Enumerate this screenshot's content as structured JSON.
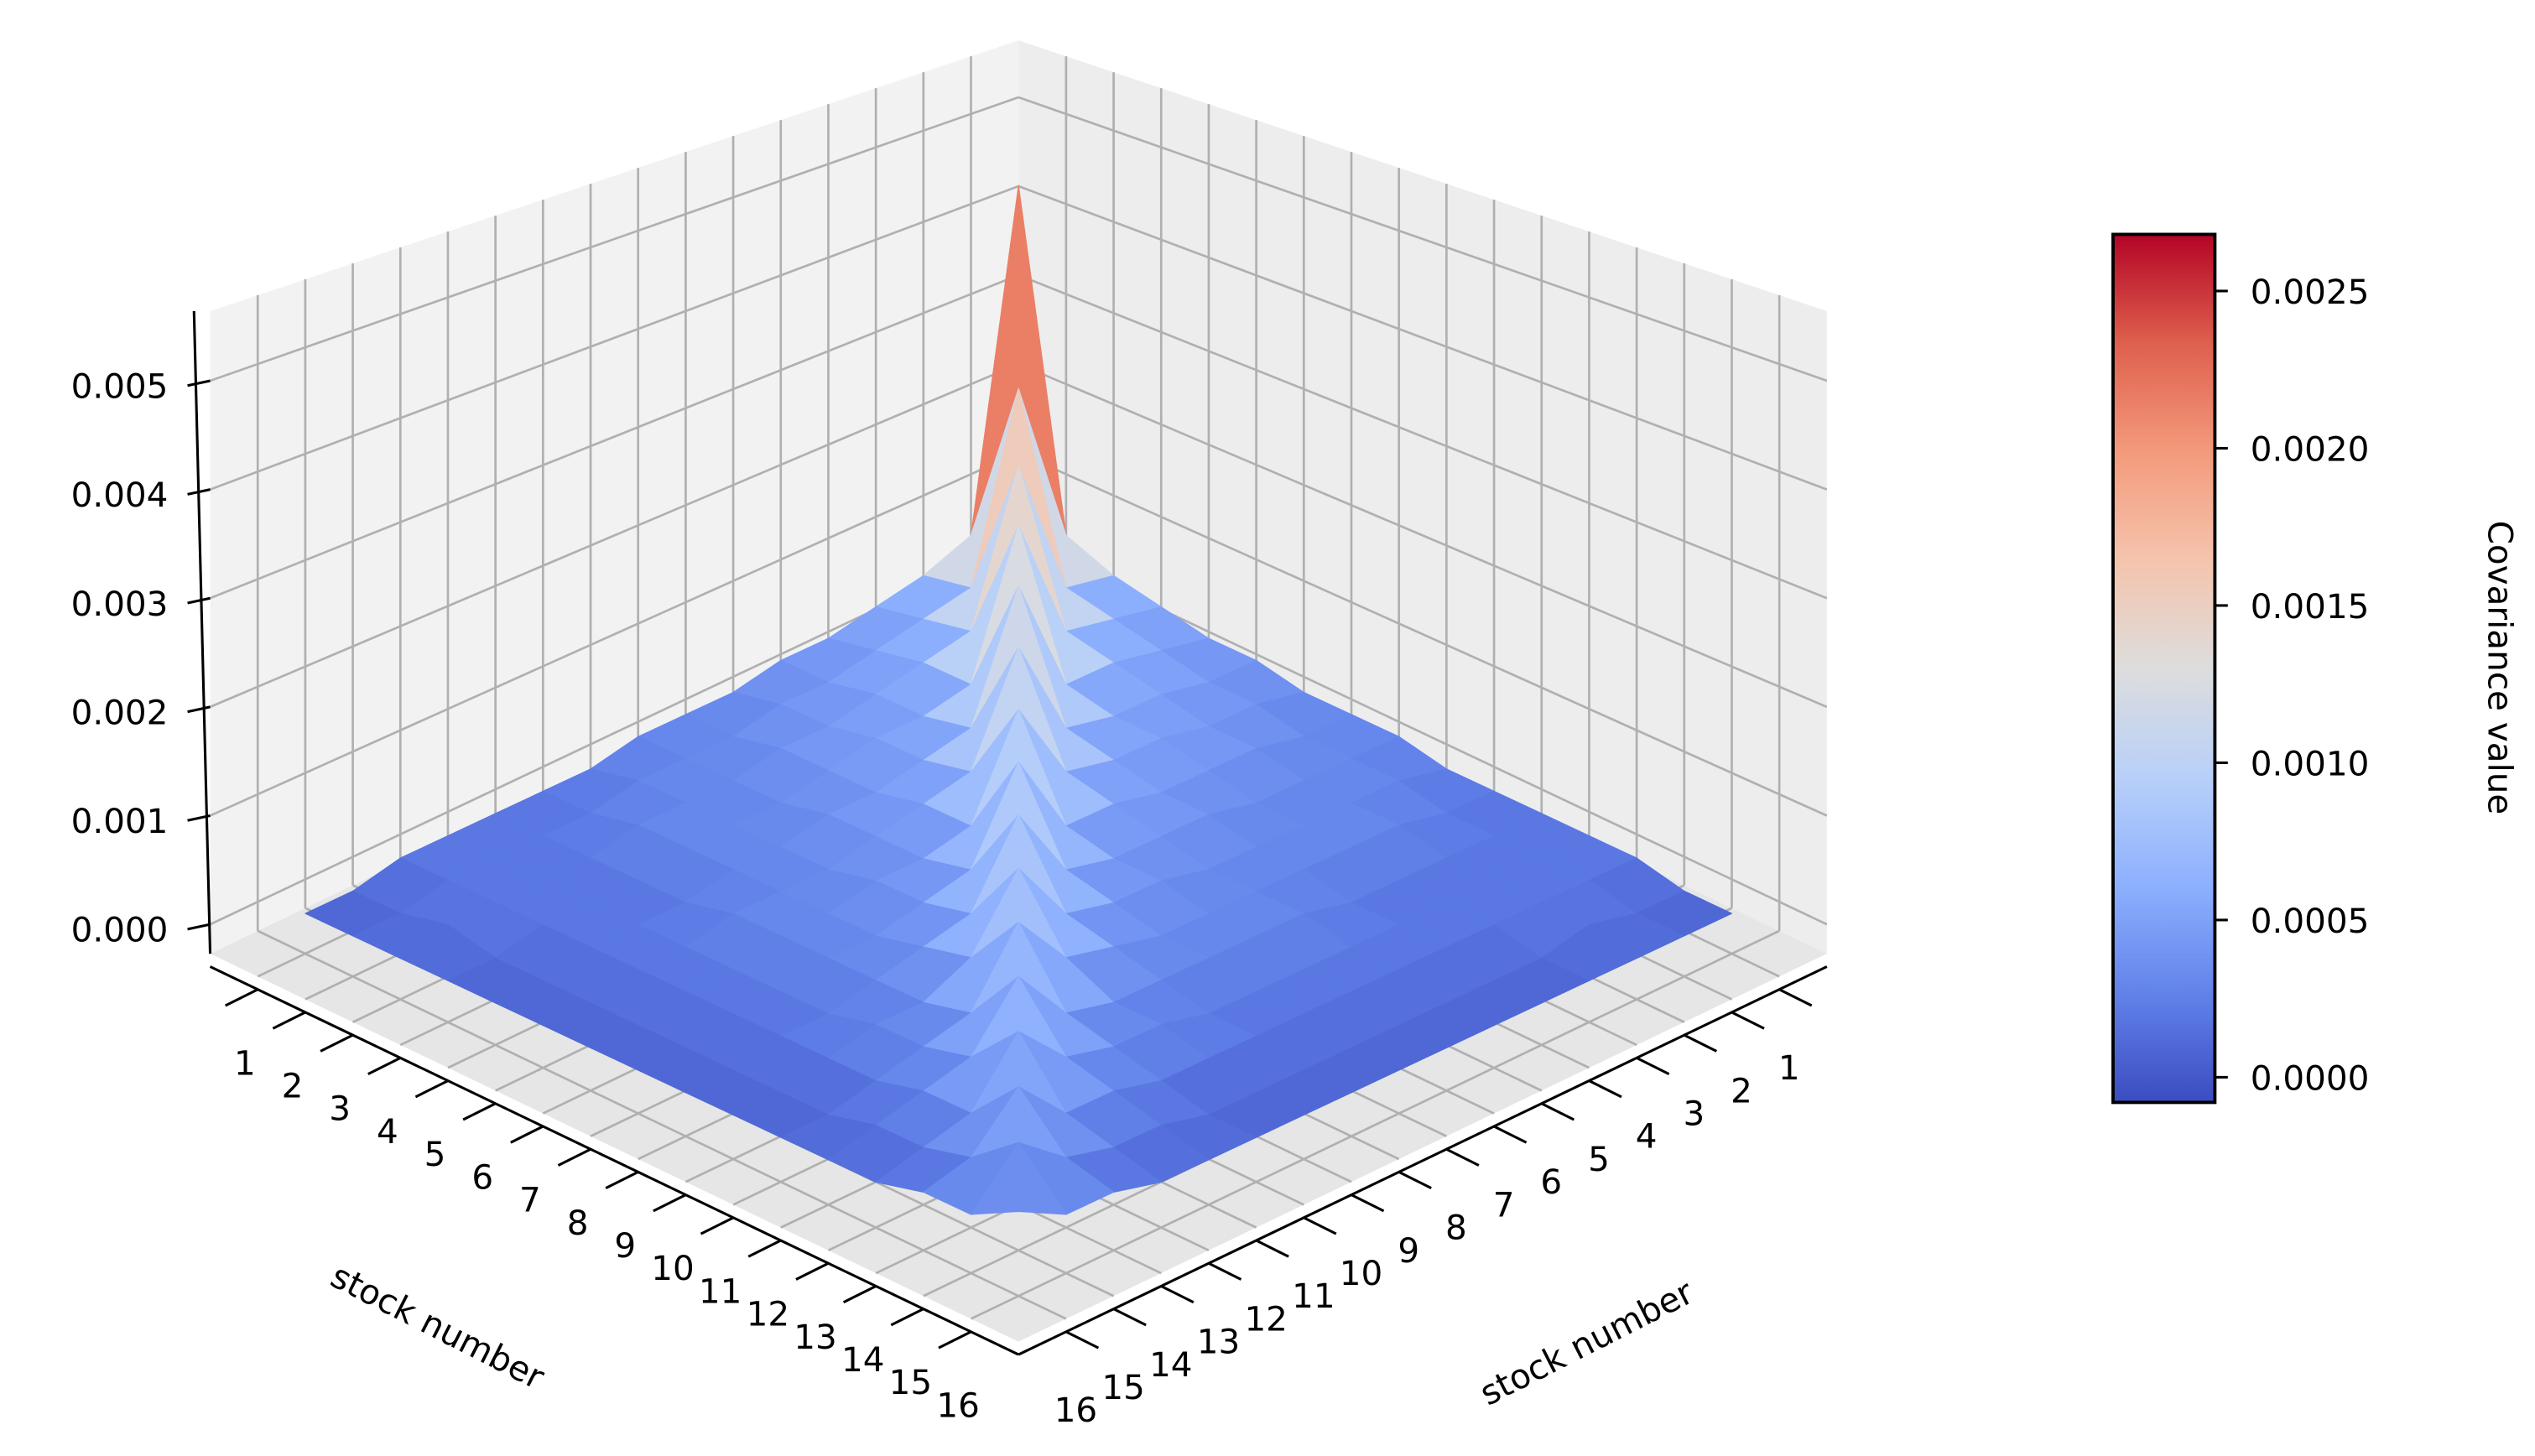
{
  "chart_data": {
    "type": "surface",
    "x": [
      1,
      2,
      3,
      4,
      5,
      6,
      7,
      8,
      9,
      10,
      11,
      12,
      13,
      14,
      15,
      16
    ],
    "y": [
      1,
      2,
      3,
      4,
      5,
      6,
      7,
      8,
      9,
      10,
      11,
      12,
      13,
      14,
      15,
      16
    ],
    "z": [
      [
        0.0044,
        0.0008,
        0.0006,
        0.0005,
        0.0004,
        0.0004,
        0.0003,
        0.0003,
        0.0003,
        0.0002,
        0.0002,
        0.0002,
        0.0002,
        0.0002,
        0.0001,
        0.0001
      ],
      [
        0.0008,
        0.0026,
        0.0007,
        0.0006,
        0.0005,
        0.0004,
        0.0004,
        0.0003,
        0.0003,
        0.0003,
        0.0002,
        0.0002,
        0.0002,
        0.0002,
        0.0001,
        0.0001
      ],
      [
        0.0006,
        0.0007,
        0.0022,
        0.0007,
        0.0006,
        0.0005,
        0.0004,
        0.0004,
        0.0003,
        0.0003,
        0.0003,
        0.0002,
        0.0002,
        0.0002,
        0.0002,
        0.0001
      ],
      [
        0.0005,
        0.0006,
        0.0007,
        0.002,
        0.0006,
        0.0005,
        0.0005,
        0.0004,
        0.0003,
        0.0003,
        0.0003,
        0.0002,
        0.0002,
        0.0002,
        0.0001,
        0.0001
      ],
      [
        0.0004,
        0.0005,
        0.0006,
        0.0006,
        0.0018,
        0.0006,
        0.0005,
        0.0004,
        0.0004,
        0.0003,
        0.0003,
        0.0002,
        0.0002,
        0.0002,
        0.0001,
        0.0001
      ],
      [
        0.0004,
        0.0004,
        0.0005,
        0.0005,
        0.0006,
        0.0016,
        0.0006,
        0.0005,
        0.0004,
        0.0003,
        0.0003,
        0.0003,
        0.0002,
        0.0002,
        0.0001,
        0.0001
      ],
      [
        0.0003,
        0.0004,
        0.0004,
        0.0005,
        0.0005,
        0.0006,
        0.0014,
        0.0005,
        0.0004,
        0.0004,
        0.0003,
        0.0003,
        0.0002,
        0.0002,
        0.0001,
        0.0001
      ],
      [
        0.0003,
        0.0003,
        0.0004,
        0.0004,
        0.0004,
        0.0005,
        0.0005,
        0.0013,
        0.0005,
        0.0004,
        0.0003,
        0.0003,
        0.0002,
        0.0002,
        0.0001,
        0.0001
      ],
      [
        0.0003,
        0.0003,
        0.0003,
        0.0003,
        0.0004,
        0.0004,
        0.0004,
        0.0005,
        0.0012,
        0.0005,
        0.0004,
        0.0003,
        0.0002,
        0.0002,
        0.0001,
        0.0001
      ],
      [
        0.0002,
        0.0003,
        0.0003,
        0.0003,
        0.0003,
        0.0003,
        0.0004,
        0.0004,
        0.0005,
        0.0011,
        0.0005,
        0.0003,
        0.0003,
        0.0002,
        0.0001,
        0.0001
      ],
      [
        0.0002,
        0.0002,
        0.0003,
        0.0003,
        0.0003,
        0.0003,
        0.0003,
        0.0003,
        0.0004,
        0.0005,
        0.001,
        0.0004,
        0.0003,
        0.0002,
        0.0001,
        0.0001
      ],
      [
        0.0002,
        0.0002,
        0.0002,
        0.0002,
        0.0002,
        0.0003,
        0.0003,
        0.0003,
        0.0003,
        0.0003,
        0.0004,
        0.0009,
        0.0004,
        0.0003,
        0.0002,
        0.0001
      ],
      [
        0.0002,
        0.0002,
        0.0002,
        0.0002,
        0.0002,
        0.0002,
        0.0002,
        0.0002,
        0.0002,
        0.0003,
        0.0003,
        0.0004,
        0.0008,
        0.0003,
        0.0002,
        0.0001
      ],
      [
        0.0002,
        0.0002,
        0.0002,
        0.0002,
        0.0002,
        0.0002,
        0.0002,
        0.0002,
        0.0002,
        0.0002,
        0.0002,
        0.0003,
        0.0003,
        0.0007,
        0.0003,
        0.0002
      ],
      [
        0.0001,
        0.0001,
        0.0002,
        0.0001,
        0.0001,
        0.0001,
        0.0001,
        0.0001,
        0.0001,
        0.0001,
        0.0001,
        0.0002,
        0.0002,
        0.0003,
        0.0006,
        0.0002
      ],
      [
        0.0001,
        0.0001,
        0.0001,
        0.0001,
        0.0001,
        0.0001,
        0.0001,
        0.0001,
        0.0001,
        0.0001,
        0.0001,
        0.0001,
        0.0001,
        0.0002,
        0.0002,
        0.0004
      ]
    ],
    "xlabel": "stock number",
    "ylabel": "stock number",
    "xlim": [
      0,
      17
    ],
    "ylim": [
      0,
      17
    ],
    "zlim": [
      -0.00027,
      0.00564
    ],
    "xticks": [
      1,
      2,
      3,
      4,
      5,
      6,
      7,
      8,
      9,
      10,
      11,
      12,
      13,
      14,
      15,
      16
    ],
    "yticks": [
      1,
      2,
      3,
      4,
      5,
      6,
      7,
      8,
      9,
      10,
      11,
      12,
      13,
      14,
      15,
      16
    ],
    "zticks": [
      {
        "value": 0,
        "label": "0.000"
      },
      {
        "value": 0.001,
        "label": "0.001"
      },
      {
        "value": 0.002,
        "label": "0.002"
      },
      {
        "value": 0.003,
        "label": "0.003"
      },
      {
        "value": 0.004,
        "label": "0.004"
      },
      {
        "value": 0.005,
        "label": "0.005"
      }
    ],
    "colormap": "coolwarm",
    "colorbar": {
      "label": "Covariance value",
      "clim": [
        -8e-05,
        0.00268
      ],
      "ticks": [
        {
          "value": 0,
          "label": "0.0000"
        },
        {
          "value": 0.0005,
          "label": "0.0005"
        },
        {
          "value": 0.001,
          "label": "0.0010"
        },
        {
          "value": 0.0015,
          "label": "0.0015"
        },
        {
          "value": 0.002,
          "label": "0.0020"
        },
        {
          "value": 0.0025,
          "label": "0.0025"
        }
      ]
    },
    "grid": true
  }
}
